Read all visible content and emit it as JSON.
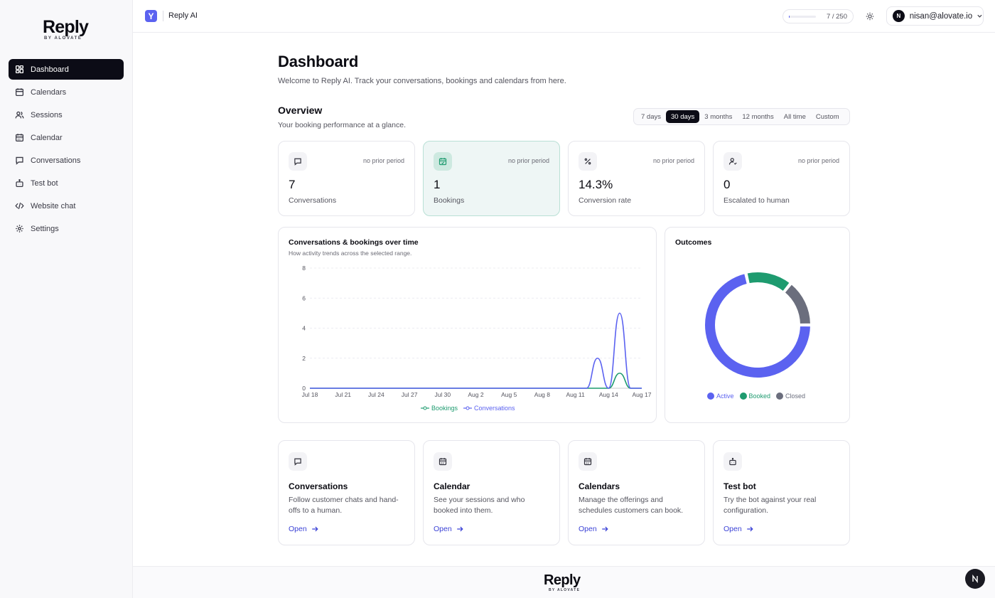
{
  "brand": {
    "logo_word": "Reply",
    "logo_sub": "BY ALOVATE",
    "accent": "#5b62f0"
  },
  "sidebar": {
    "items": [
      {
        "label": "Dashboard",
        "icon": "grid-icon"
      },
      {
        "label": "Calendars",
        "icon": "calendar-icon"
      },
      {
        "label": "Sessions",
        "icon": "users-icon"
      },
      {
        "label": "Calendar",
        "icon": "calendar-days-icon"
      },
      {
        "label": "Conversations",
        "icon": "chat-icon"
      },
      {
        "label": "Test bot",
        "icon": "bot-icon"
      },
      {
        "label": "Website chat",
        "icon": "code-icon"
      },
      {
        "label": "Settings",
        "icon": "gear-icon"
      }
    ]
  },
  "topbar": {
    "app_logo_letter": "Y",
    "app_name": "Reply AI",
    "usage_text": "7 / 250",
    "usage_fraction": 0.028,
    "account_initial": "N",
    "account_email": "nisan@alovate.io"
  },
  "page": {
    "title": "Dashboard",
    "subtitle": "Welcome to Reply AI. Track your conversations, bookings and calendars from here."
  },
  "overview": {
    "title": "Overview",
    "subtitle": "Your booking performance at a glance.",
    "ranges": [
      "7 days",
      "30 days",
      "3 months",
      "12 months",
      "All time",
      "Custom"
    ],
    "active_range": "30 days"
  },
  "stats": [
    {
      "value": "7",
      "label": "Conversations",
      "prior": "no prior period",
      "icon": "chat-icon"
    },
    {
      "value": "1",
      "label": "Bookings",
      "prior": "no prior period",
      "icon": "calendar-check-icon"
    },
    {
      "value": "14.3%",
      "label": "Conversion rate",
      "prior": "no prior period",
      "icon": "percent-icon"
    },
    {
      "value": "0",
      "label": "Escalated to human",
      "prior": "no prior period",
      "icon": "user-escalate-icon"
    }
  ],
  "line_panel": {
    "title": "Conversations & bookings over time",
    "subtitle": "How activity trends across the selected range."
  },
  "outcomes_panel": {
    "title": "Outcomes"
  },
  "chart_data": [
    {
      "type": "line",
      "title": "Conversations & bookings over time",
      "x_ticks": [
        "Jul 18",
        "Jul 21",
        "Jul 24",
        "Jul 27",
        "Jul 30",
        "Aug 2",
        "Aug 5",
        "Aug 8",
        "Aug 11",
        "Aug 14",
        "Aug 17"
      ],
      "x": [
        "Jul 18",
        "Jul 19",
        "Jul 20",
        "Jul 21",
        "Jul 22",
        "Jul 23",
        "Jul 24",
        "Jul 25",
        "Jul 26",
        "Jul 27",
        "Jul 28",
        "Jul 29",
        "Jul 30",
        "Jul 31",
        "Aug 1",
        "Aug 2",
        "Aug 3",
        "Aug 4",
        "Aug 5",
        "Aug 6",
        "Aug 7",
        "Aug 8",
        "Aug 9",
        "Aug 10",
        "Aug 11",
        "Aug 12",
        "Aug 13",
        "Aug 14",
        "Aug 15",
        "Aug 16",
        "Aug 17"
      ],
      "y_ticks": [
        0,
        2,
        4,
        6,
        8
      ],
      "ylim": [
        0,
        8
      ],
      "grid": true,
      "legend": "bottom",
      "series": [
        {
          "name": "Bookings",
          "color": "#1e9b6f",
          "values": [
            0,
            0,
            0,
            0,
            0,
            0,
            0,
            0,
            0,
            0,
            0,
            0,
            0,
            0,
            0,
            0,
            0,
            0,
            0,
            0,
            0,
            0,
            0,
            0,
            0,
            0,
            0,
            0,
            1,
            0,
            0
          ]
        },
        {
          "name": "Conversations",
          "color": "#5b62f0",
          "values": [
            0,
            0,
            0,
            0,
            0,
            0,
            0,
            0,
            0,
            0,
            0,
            0,
            0,
            0,
            0,
            0,
            0,
            0,
            0,
            0,
            0,
            0,
            0,
            0,
            0,
            0,
            2,
            0,
            5,
            0,
            0
          ]
        }
      ]
    },
    {
      "type": "pie",
      "title": "Outcomes",
      "donut": true,
      "legend": "bottom",
      "slices": [
        {
          "name": "Active",
          "value": 5,
          "color": "#5b62f0"
        },
        {
          "name": "Booked",
          "value": 1,
          "color": "#1e9b6f"
        },
        {
          "name": "Closed",
          "value": 1,
          "color": "#6b6e7d"
        }
      ]
    }
  ],
  "cards": [
    {
      "title": "Conversations",
      "desc": "Follow customer chats and hand-offs to a human.",
      "link": "Open",
      "icon": "chat-icon"
    },
    {
      "title": "Calendar",
      "desc": "See your sessions and who booked into them.",
      "link": "Open",
      "icon": "calendar-days-icon"
    },
    {
      "title": "Calendars",
      "desc": "Manage the offerings and schedules customers can book.",
      "link": "Open",
      "icon": "calendar-days-icon"
    },
    {
      "title": "Test bot",
      "desc": "Try the bot against your real configuration.",
      "link": "Open",
      "icon": "bot-icon"
    }
  ],
  "footer": {
    "logo_word": "Reply",
    "logo_sub": "BY ALOVATE"
  }
}
